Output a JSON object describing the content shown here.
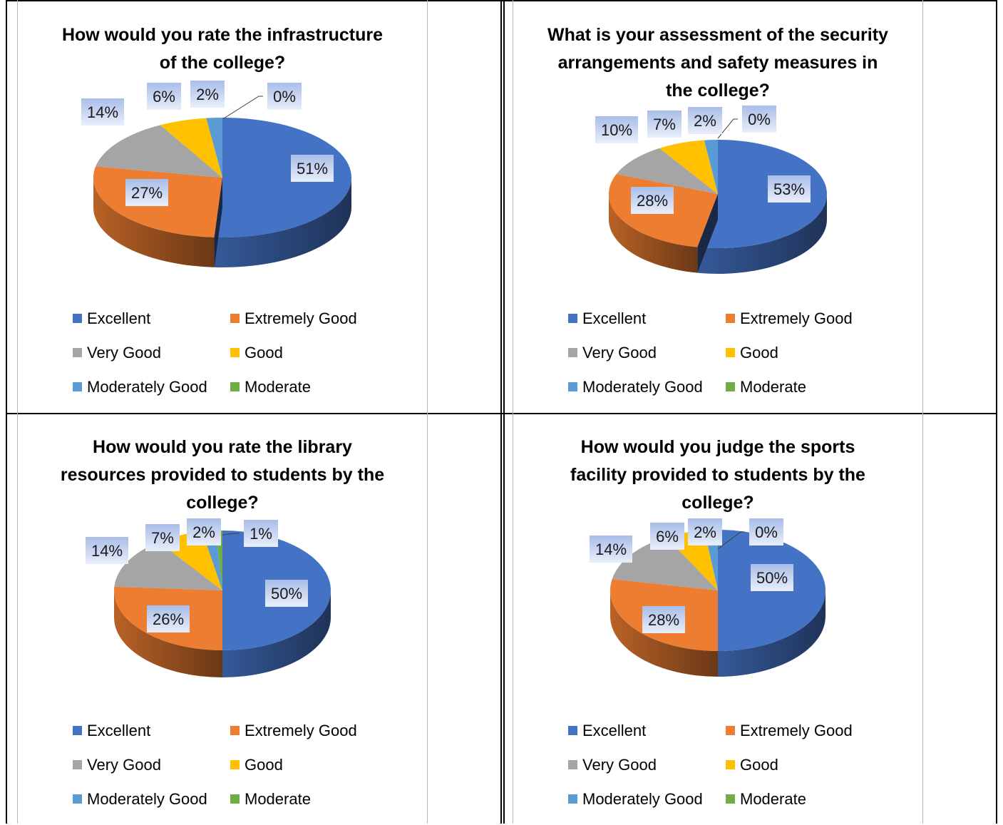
{
  "categories": [
    "Excellent",
    "Extremely Good",
    "Very Good",
    "Good",
    "Moderately Good",
    "Moderate"
  ],
  "colors": [
    "#4472c4",
    "#ed7d31",
    "#a5a5a5",
    "#ffc000",
    "#5b9bd5",
    "#70ad47"
  ],
  "chart_data": [
    {
      "type": "pie",
      "title": "How would you rate the infrastructure of the college?",
      "categories": [
        "Excellent",
        "Extremely Good",
        "Very Good",
        "Good",
        "Moderately Good",
        "Moderate"
      ],
      "values": [
        51,
        27,
        14,
        6,
        2,
        0
      ],
      "labels": [
        "51%",
        "27%",
        "14%",
        "6%",
        "2%",
        "0%"
      ],
      "legend": "bottom",
      "style": "3d"
    },
    {
      "type": "pie",
      "title": "What is your assessment of the security arrangements and safety measures in the college?",
      "categories": [
        "Excellent",
        "Extremely Good",
        "Very Good",
        "Good",
        "Moderately Good",
        "Moderate"
      ],
      "values": [
        53,
        28,
        10,
        7,
        2,
        0
      ],
      "labels": [
        "53%",
        "28%",
        "10%",
        "7%",
        "2%",
        "0%"
      ],
      "legend": "bottom",
      "style": "3d"
    },
    {
      "type": "pie",
      "title": "How would you rate the library resources provided to students by the college?",
      "categories": [
        "Excellent",
        "Extremely Good",
        "Very Good",
        "Good",
        "Moderately Good",
        "Moderate"
      ],
      "values": [
        50,
        26,
        14,
        7,
        2,
        1
      ],
      "labels": [
        "50%",
        "26%",
        "14%",
        "7%",
        "2%",
        "1%"
      ],
      "legend": "bottom",
      "style": "3d"
    },
    {
      "type": "pie",
      "title": "How would you judge the sports facility provided to students by the college?",
      "categories": [
        "Excellent",
        "Extremely Good",
        "Very Good",
        "Good",
        "Moderately Good",
        "Moderate"
      ],
      "values": [
        50,
        28,
        14,
        6,
        2,
        0
      ],
      "labels": [
        "50%",
        "28%",
        "14%",
        "6%",
        "2%",
        "0%"
      ],
      "legend": "bottom",
      "style": "3d"
    }
  ]
}
